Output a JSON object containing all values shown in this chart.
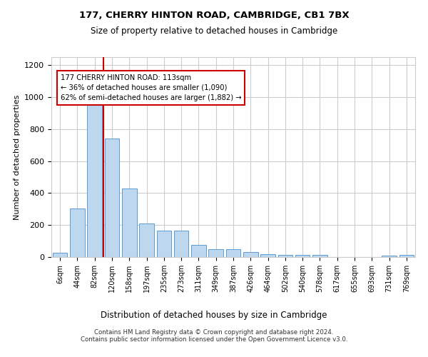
{
  "title": "177, CHERRY HINTON ROAD, CAMBRIDGE, CB1 7BX",
  "subtitle": "Size of property relative to detached houses in Cambridge",
  "xlabel": "Distribution of detached houses by size in Cambridge",
  "ylabel": "Number of detached properties",
  "categories": [
    "6sqm",
    "44sqm",
    "82sqm",
    "120sqm",
    "158sqm",
    "197sqm",
    "235sqm",
    "273sqm",
    "311sqm",
    "349sqm",
    "387sqm",
    "426sqm",
    "464sqm",
    "502sqm",
    "540sqm",
    "578sqm",
    "617sqm",
    "655sqm",
    "693sqm",
    "731sqm",
    "769sqm"
  ],
  "values": [
    25,
    305,
    960,
    740,
    430,
    210,
    165,
    165,
    75,
    50,
    50,
    30,
    18,
    14,
    13,
    15,
    0,
    0,
    0,
    10,
    15
  ],
  "bar_color": "#bdd7ee",
  "bar_edge_color": "#5b9bd5",
  "property_line_x": 2.5,
  "annotation_text": "177 CHERRY HINTON ROAD: 113sqm\n← 36% of detached houses are smaller (1,090)\n62% of semi-detached houses are larger (1,882) →",
  "annotation_box_color": "#ffffff",
  "annotation_edge_color": "#cc0000",
  "property_line_color": "#cc0000",
  "ylim": [
    0,
    1250
  ],
  "yticks": [
    0,
    200,
    400,
    600,
    800,
    1000,
    1200
  ],
  "grid_color": "#cccccc",
  "background_color": "#ffffff",
  "footer_line1": "Contains HM Land Registry data © Crown copyright and database right 2024.",
  "footer_line2": "Contains public sector information licensed under the Open Government Licence v3.0."
}
